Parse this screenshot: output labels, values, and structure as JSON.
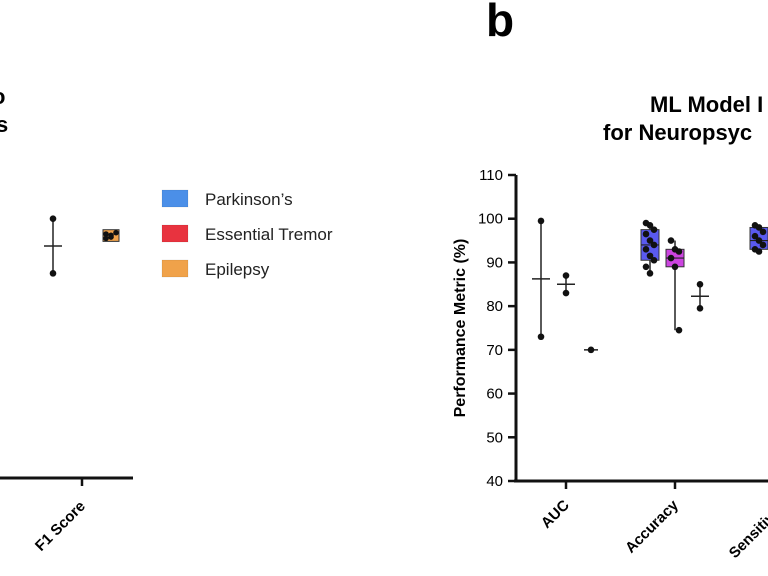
{
  "panel_b": {
    "letter": "b",
    "title_line1": "ML Model I",
    "title_line2": "for Neuropsyc"
  },
  "panel_a": {
    "title_fragment_1": "o",
    "title_fragment_2": "s",
    "category_label": "F1 Score"
  },
  "legend": {
    "items": [
      {
        "label": "Parkinson’s",
        "color": "#4b8fe8"
      },
      {
        "label": "Essential Tremor",
        "color": "#e8333f"
      },
      {
        "label": "Epilepsy",
        "color": "#f0a24a"
      }
    ]
  },
  "chart_data": [
    {
      "type": "box",
      "panel": "a",
      "categories": [
        "F1 Score"
      ],
      "series": [
        {
          "name": "Parkinson’s",
          "color": "#4b8fe8",
          "points": []
        },
        {
          "name": "Essential Tremor",
          "color": "#e8333f",
          "points": {
            "F1 Score": [
              100,
              87.5
            ]
          }
        },
        {
          "name": "Epilepsy",
          "color": "#f0a24a",
          "points": {
            "F1 Score": [
              96.5,
              95.8,
              96.8,
              95.5,
              96.2
            ]
          }
        }
      ]
    },
    {
      "type": "box",
      "panel": "b",
      "title": "ML Model I for Neuropsyc",
      "ylabel": "Performance Metric (%)",
      "ylim": [
        40,
        110
      ],
      "yticks": [
        40,
        50,
        60,
        70,
        80,
        90,
        100,
        110
      ],
      "categories": [
        "AUC",
        "Accuracy",
        "Sensitivity"
      ],
      "series": [
        {
          "name": "Parkinson’s",
          "color": "#4b8fe8",
          "fill": "#5a5af0",
          "points": {
            "AUC": [
              99.5,
              73
            ],
            "Accuracy": [
              99,
              98.5,
              97.5,
              96.5,
              95,
              94,
              93,
              91.5,
              90.5,
              89,
              87.5
            ],
            "Sensitivity": [
              98.5,
              98,
              97,
              96,
              95,
              94,
              93,
              92.5
            ]
          }
        },
        {
          "name": "Essential Tremor",
          "color": "#e8333f",
          "fill": "#cc44e0",
          "points": {
            "AUC": [
              87,
              83
            ],
            "Accuracy": [
              95,
              93,
              92.5,
              91,
              89,
              74.5
            ]
          }
        },
        {
          "name": "Epilepsy",
          "color": "#f0a24a",
          "fill": "#f0a24a",
          "points": {
            "AUC": [
              70
            ],
            "Accuracy": [
              85,
              79.5
            ]
          }
        }
      ]
    }
  ]
}
